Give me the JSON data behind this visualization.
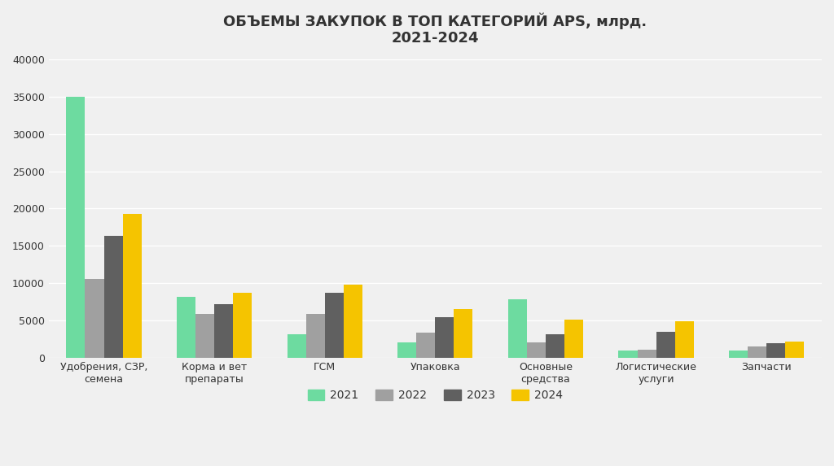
{
  "title": "ОБЪЕМЫ ЗАКУПОК В ТОП КАТЕГОРИЙ APS, млрд.\n2021-2024",
  "categories": [
    "Удобрения, СЗР,\nсемена",
    "Корма и вет\nпрепараты",
    "ГСМ",
    "Упаковка",
    "Основные\nсредства",
    "Логистические\nуслуги",
    "Запчасти"
  ],
  "years": [
    "2021",
    "2022",
    "2023",
    "2024"
  ],
  "colors": [
    "#6DDBA0",
    "#A0A0A0",
    "#606060",
    "#F5C400"
  ],
  "values": {
    "2021": [
      35000,
      8200,
      3100,
      2000,
      7800,
      1000,
      1000
    ],
    "2022": [
      10500,
      5900,
      5900,
      3400,
      2000,
      1100,
      1500
    ],
    "2023": [
      16300,
      7200,
      8700,
      5400,
      3100,
      3500,
      1900
    ],
    "2024": [
      19300,
      8700,
      9800,
      6500,
      5100,
      4900,
      2200
    ]
  },
  "ylim": [
    0,
    40000
  ],
  "yticks": [
    0,
    5000,
    10000,
    15000,
    20000,
    25000,
    30000,
    35000,
    40000
  ],
  "background_color": "#F0F0F0",
  "axes_bg_color": "#F0F0F0",
  "text_color": "#333333",
  "grid_color": "#FFFFFF",
  "title_fontsize": 13,
  "tick_fontsize": 9,
  "legend_fontsize": 10,
  "bar_width": 0.17
}
